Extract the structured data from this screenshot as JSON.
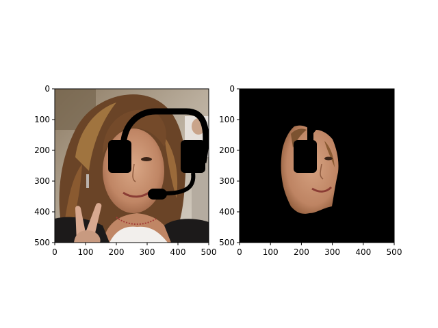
{
  "figure": {
    "panels": [
      {
        "name": "original-with-headset",
        "description_visible": "photo of smiling woman with curly brown hair making peace sign, black headset overlay",
        "x_ticks": [
          "0",
          "100",
          "200",
          "300",
          "400",
          "500"
        ],
        "y_ticks": [
          "0",
          "100",
          "200",
          "300",
          "400",
          "500"
        ],
        "xlim": [
          0,
          500
        ],
        "ylim": [
          500,
          0
        ]
      },
      {
        "name": "masked-face",
        "description_visible": "black background with only the segmented face region visible, headset earcup hole",
        "x_ticks": [
          "0",
          "100",
          "200",
          "300",
          "400",
          "500"
        ],
        "y_ticks": [
          "0",
          "100",
          "200",
          "300",
          "400",
          "500"
        ],
        "xlim": [
          0,
          500
        ],
        "ylim": [
          500,
          0
        ]
      }
    ],
    "colors": {
      "background": "#ffffff",
      "axis": "#000000",
      "headset": "#000000",
      "mask_bg": "#000000",
      "skin": "#c48e6e",
      "hair": "#6e4628"
    }
  }
}
